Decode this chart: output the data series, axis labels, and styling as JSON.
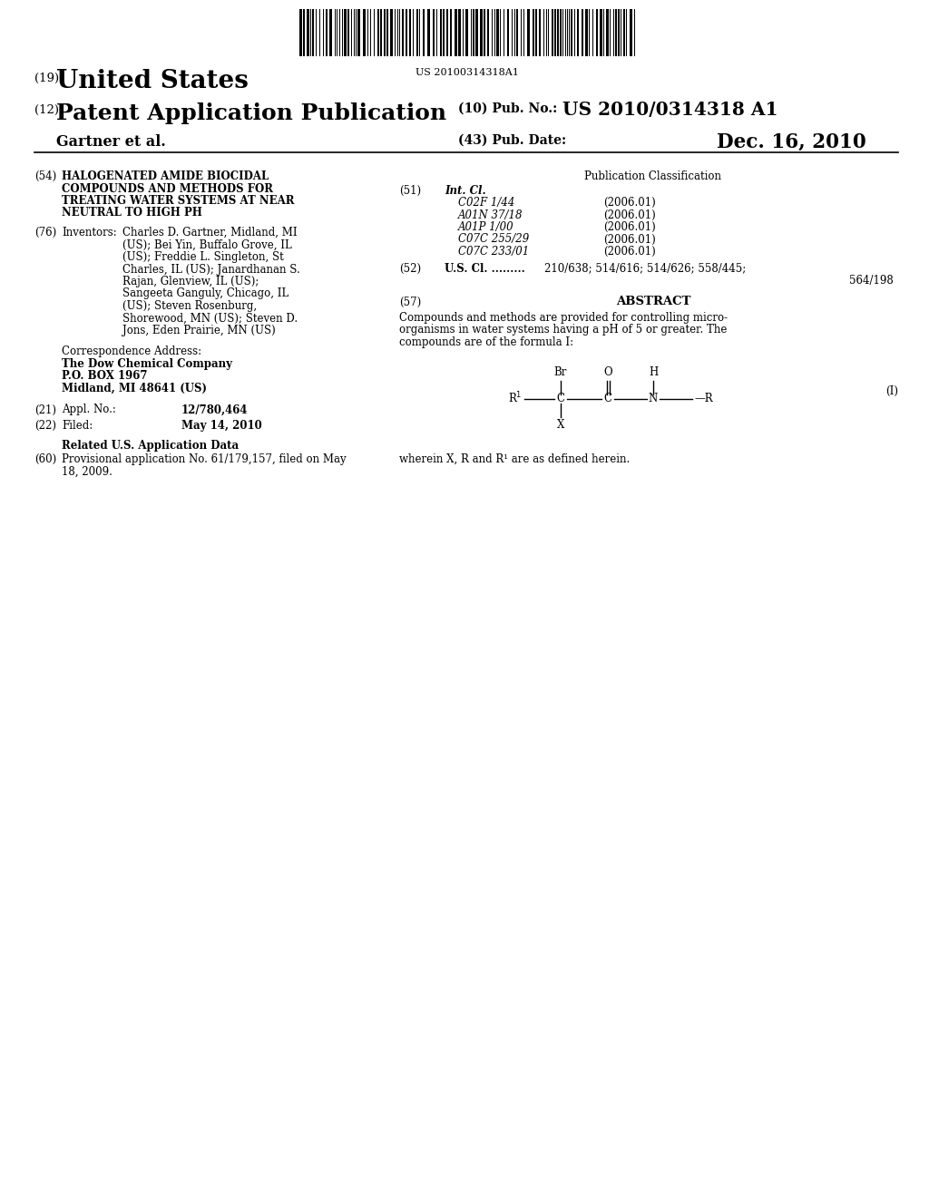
{
  "background_color": "#ffffff",
  "barcode_text": "US 20100314318A1",
  "patent_number_label": "(19)",
  "patent_title_line1": "United States",
  "pub_type_label": "(12)",
  "pub_type": "Patent Application Publication",
  "pub_no_label": "(10) Pub. No.:",
  "pub_no": "US 2010/0314318 A1",
  "pub_date_num": "(43)",
  "pub_date_label": "Pub. Date:",
  "pub_date": "Dec. 16, 2010",
  "applicant": "Gartner et al.",
  "title_num": "(54)",
  "title_lines": [
    "HALOGENATED AMIDE BIOCIDAL",
    "COMPOUNDS AND METHODS FOR",
    "TREATING WATER SYSTEMS AT NEAR",
    "NEUTRAL TO HIGH PH"
  ],
  "inventors_num": "(76)",
  "inventors_label": "Inventors:",
  "inventors_lines": [
    "Charles D. Gartner, Midland, MI",
    "(US); Bei Yin, Buffalo Grove, IL",
    "(US); Freddie L. Singleton, St",
    "Charles, IL (US); Janardhanan S.",
    "Rajan, Glenview, IL (US);",
    "Sangeeta Ganguly, Chicago, IL",
    "(US); Steven Rosenburg,",
    "Shorewood, MN (US); Steven D.",
    "Jons, Eden Prairie, MN (US)"
  ],
  "correspondence_header": "Correspondence Address:",
  "correspondence_company": "The Dow Chemical Company",
  "correspondence_address1": "P.O. BOX 1967",
  "correspondence_address2": "Midland, MI 48641 (US)",
  "appl_no_num": "(21)",
  "appl_no_label": "Appl. No.:",
  "appl_no": "12/780,464",
  "filed_num": "(22)",
  "filed_label": "Filed:",
  "filed_date": "May 14, 2010",
  "related_header": "Related U.S. Application Data",
  "related_num": "(60)",
  "related_lines": [
    "Provisional application No. 61/179,157, filed on May",
    "18, 2009."
  ],
  "pub_class_header": "Publication Classification",
  "int_cl_num": "(51)",
  "int_cl_label": "Int. Cl.",
  "int_cl_entries": [
    [
      "C02F 1/44",
      "(2006.01)"
    ],
    [
      "A01N 37/18",
      "(2006.01)"
    ],
    [
      "A01P 1/00",
      "(2006.01)"
    ],
    [
      "C07C 255/29",
      "(2006.01)"
    ],
    [
      "C07C 233/01",
      "(2006.01)"
    ]
  ],
  "us_cl_num": "(52)",
  "us_cl_label": "U.S. Cl.",
  "us_cl_dots": ".........",
  "us_cl_line1": "210/638; 514/616; 514/626; 558/445;",
  "us_cl_line2": "564/198",
  "abstract_num": "(57)",
  "abstract_label": "ABSTRACT",
  "abstract_lines": [
    "Compounds and methods are provided for controlling micro-",
    "organisms in water systems having a pH of 5 or greater. The",
    "compounds are of the formula I:"
  ],
  "formula_label": "(I)",
  "wherein_text": "wherein X, R and R¹ are as defined herein."
}
